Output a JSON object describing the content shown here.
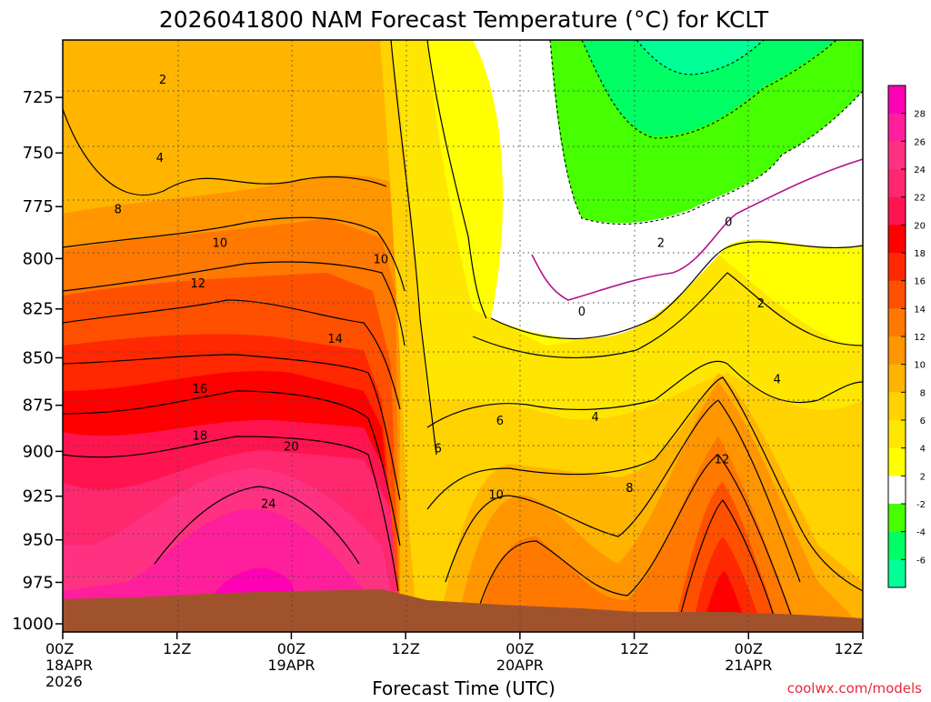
{
  "chart_data": {
    "type": "heatmap",
    "title": "2026041800 NAM Forecast Temperature (°C) for KCLT",
    "xlabel": "Forecast Time (UTC)",
    "credit": "coolwx.com/models",
    "x_ticks": [
      {
        "label": "00Z",
        "sub": [
          "18APR",
          "2026"
        ]
      },
      {
        "label": "12Z",
        "sub": []
      },
      {
        "label": "00Z",
        "sub": [
          "19APR"
        ]
      },
      {
        "label": "12Z",
        "sub": []
      },
      {
        "label": "00Z",
        "sub": [
          "20APR"
        ]
      },
      {
        "label": "12Z",
        "sub": []
      },
      {
        "label": "00Z",
        "sub": [
          "21APR"
        ]
      },
      {
        "label": "12Z",
        "sub": []
      }
    ],
    "x_hours": [
      0,
      12,
      24,
      36,
      48,
      60,
      72,
      84
    ],
    "y_ticks": [
      "725",
      "750",
      "775",
      "800",
      "825",
      "850",
      "875",
      "900",
      "925",
      "950",
      "975",
      "1000"
    ],
    "y_values": [
      725,
      750,
      775,
      800,
      825,
      850,
      875,
      900,
      925,
      950,
      975,
      1000
    ],
    "ylim": [
      700,
      1005
    ],
    "xlim": [
      0,
      84
    ],
    "colorbar": {
      "labels": [
        "28",
        "26",
        "24",
        "22",
        "20",
        "18",
        "16",
        "14",
        "12",
        "10",
        "8",
        "6",
        "4",
        "2",
        "-2",
        "-4",
        "-6"
      ],
      "colors": [
        "#ff00b4",
        "#ff1e9b",
        "#ff3282",
        "#ff286e",
        "#ff1450",
        "#ff0000",
        "#ff2800",
        "#ff5000",
        "#ff7800",
        "#ff9600",
        "#ffb400",
        "#ffd200",
        "#ffe600",
        "#ffff00",
        "#ffffff",
        "#46ff00",
        "#00ff64",
        "#00ff96"
      ]
    },
    "contour_labels": [
      {
        "text": "2",
        "x": 10.5,
        "y": 717
      },
      {
        "text": "4",
        "x": 10.2,
        "y": 752
      },
      {
        "text": "8",
        "x": 5.8,
        "y": 776
      },
      {
        "text": "10",
        "x": 16.5,
        "y": 792
      },
      {
        "text": "10",
        "x": 33.4,
        "y": 800
      },
      {
        "text": "12",
        "x": 14.2,
        "y": 812
      },
      {
        "text": "14",
        "x": 28.6,
        "y": 840
      },
      {
        "text": "16",
        "x": 14.4,
        "y": 866
      },
      {
        "text": "18",
        "x": 14.4,
        "y": 891
      },
      {
        "text": "20",
        "x": 24.0,
        "y": 897
      },
      {
        "text": "24",
        "x": 21.6,
        "y": 929
      },
      {
        "text": "6",
        "x": 39.4,
        "y": 898
      },
      {
        "text": "6",
        "x": 45.9,
        "y": 883
      },
      {
        "text": "4",
        "x": 55.9,
        "y": 881
      },
      {
        "text": "10",
        "x": 45.5,
        "y": 924
      },
      {
        "text": "8",
        "x": 59.5,
        "y": 920
      },
      {
        "text": "12",
        "x": 69.2,
        "y": 904
      },
      {
        "text": "0",
        "x": 54.5,
        "y": 826
      },
      {
        "text": "0",
        "x": 69.9,
        "y": 782
      },
      {
        "text": "2",
        "x": 62.8,
        "y": 792
      },
      {
        "text": "2",
        "x": 73.3,
        "y": 822
      },
      {
        "text": "4",
        "x": 75.0,
        "y": 861
      }
    ]
  }
}
